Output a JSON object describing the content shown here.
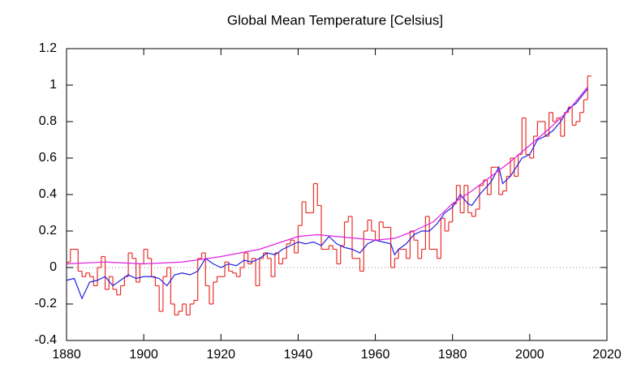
{
  "chart_data": {
    "type": "line",
    "title": "Global Mean Temperature [Celsius]",
    "xlim": [
      1880,
      2020
    ],
    "xticks": [
      1880,
      1900,
      1920,
      1940,
      1960,
      1980,
      2000,
      2020
    ],
    "ylim": [
      -0.4,
      1.2
    ],
    "yticks": [
      -0.4,
      -0.2,
      0,
      0.2,
      0.4,
      0.6,
      0.8,
      1,
      1.2
    ],
    "reference_line": 0,
    "series": [
      {
        "color": "#e8302a",
        "step": true,
        "x": [
          1880,
          1881,
          1882,
          1883,
          1884,
          1885,
          1886,
          1887,
          1888,
          1889,
          1890,
          1891,
          1892,
          1893,
          1894,
          1895,
          1896,
          1897,
          1898,
          1899,
          1900,
          1901,
          1902,
          1903,
          1904,
          1905,
          1906,
          1907,
          1908,
          1909,
          1910,
          1911,
          1912,
          1913,
          1914,
          1915,
          1916,
          1917,
          1918,
          1919,
          1920,
          1921,
          1922,
          1923,
          1924,
          1925,
          1926,
          1927,
          1928,
          1929,
          1930,
          1931,
          1932,
          1933,
          1934,
          1935,
          1936,
          1937,
          1938,
          1939,
          1940,
          1941,
          1942,
          1943,
          1944,
          1945,
          1946,
          1947,
          1948,
          1949,
          1950,
          1951,
          1952,
          1953,
          1954,
          1955,
          1956,
          1957,
          1958,
          1959,
          1960,
          1961,
          1962,
          1963,
          1964,
          1965,
          1966,
          1967,
          1968,
          1969,
          1970,
          1971,
          1972,
          1973,
          1974,
          1975,
          1976,
          1977,
          1978,
          1979,
          1980,
          1981,
          1982,
          1983,
          1984,
          1985,
          1986,
          1987,
          1988,
          1989,
          1990,
          1991,
          1992,
          1993,
          1994,
          1995,
          1996,
          1997,
          1998,
          1999,
          2000,
          2001,
          2002,
          2003,
          2004,
          2005,
          2006,
          2007,
          2008,
          2009,
          2010,
          2011,
          2012,
          2013,
          2014,
          2015
        ],
        "values": [
          0.03,
          0.1,
          0.1,
          -0.02,
          -0.05,
          -0.03,
          -0.05,
          -0.1,
          0.0,
          0.06,
          -0.12,
          -0.05,
          -0.12,
          -0.15,
          -0.1,
          -0.05,
          0.08,
          0.05,
          -0.08,
          0.02,
          0.1,
          0.05,
          -0.05,
          -0.1,
          -0.24,
          -0.05,
          0.0,
          -0.2,
          -0.26,
          -0.24,
          -0.2,
          -0.26,
          -0.2,
          -0.18,
          0.05,
          0.08,
          -0.1,
          -0.2,
          -0.08,
          -0.05,
          -0.05,
          0.03,
          -0.02,
          -0.03,
          -0.05,
          0.0,
          0.08,
          0.02,
          0.05,
          -0.1,
          0.05,
          0.08,
          0.05,
          -0.05,
          0.08,
          0.02,
          0.05,
          0.13,
          0.15,
          0.08,
          0.23,
          0.36,
          0.3,
          0.3,
          0.46,
          0.34,
          0.1,
          0.1,
          0.12,
          0.1,
          0.02,
          0.12,
          0.25,
          0.28,
          0.05,
          0.05,
          -0.02,
          0.2,
          0.26,
          0.2,
          0.15,
          0.25,
          0.22,
          0.22,
          0.0,
          0.05,
          0.1,
          0.1,
          0.05,
          0.2,
          0.15,
          0.05,
          0.1,
          0.28,
          0.1,
          0.1,
          0.05,
          0.27,
          0.2,
          0.25,
          0.35,
          0.45,
          0.3,
          0.45,
          0.3,
          0.28,
          0.32,
          0.45,
          0.48,
          0.4,
          0.55,
          0.55,
          0.4,
          0.42,
          0.5,
          0.6,
          0.5,
          0.62,
          0.82,
          0.62,
          0.6,
          0.72,
          0.8,
          0.8,
          0.72,
          0.85,
          0.8,
          0.82,
          0.72,
          0.85,
          0.88,
          0.78,
          0.8,
          0.85,
          0.92,
          1.05
        ]
      },
      {
        "color": "#2020e0",
        "x": [
          1880,
          1882,
          1884,
          1886,
          1888,
          1890,
          1892,
          1894,
          1896,
          1898,
          1900,
          1902,
          1904,
          1906,
          1908,
          1910,
          1912,
          1914,
          1916,
          1918,
          1920,
          1922,
          1924,
          1926,
          1928,
          1930,
          1932,
          1934,
          1936,
          1938,
          1940,
          1942,
          1944,
          1946,
          1948,
          1950,
          1952,
          1954,
          1956,
          1958,
          1960,
          1962,
          1964,
          1965,
          1966,
          1968,
          1970,
          1972,
          1974,
          1976,
          1978,
          1980,
          1982,
          1984,
          1985,
          1987,
          1990,
          1992,
          1993,
          1995,
          1998,
          2000,
          2002,
          2004,
          2006,
          2008,
          2010,
          2012,
          2015
        ],
        "values": [
          -0.07,
          -0.06,
          -0.17,
          -0.08,
          -0.07,
          -0.05,
          -0.1,
          -0.07,
          -0.04,
          -0.06,
          -0.05,
          -0.05,
          -0.06,
          -0.1,
          -0.04,
          -0.03,
          -0.04,
          -0.02,
          0.05,
          0.02,
          0.0,
          0.02,
          0.01,
          0.04,
          0.03,
          0.05,
          0.08,
          0.07,
          0.1,
          0.12,
          0.14,
          0.13,
          0.14,
          0.12,
          0.17,
          0.13,
          0.11,
          0.1,
          0.08,
          0.13,
          0.15,
          0.14,
          0.13,
          0.07,
          0.1,
          0.13,
          0.18,
          0.2,
          0.2,
          0.24,
          0.3,
          0.33,
          0.4,
          0.35,
          0.34,
          0.4,
          0.47,
          0.55,
          0.46,
          0.5,
          0.6,
          0.62,
          0.7,
          0.72,
          0.75,
          0.8,
          0.87,
          0.9,
          0.98
        ]
      },
      {
        "color": "#e020e0",
        "x": [
          1880,
          1890,
          1900,
          1910,
          1920,
          1930,
          1940,
          1945,
          1950,
          1955,
          1960,
          1965,
          1970,
          1975,
          1980,
          1985,
          1990,
          1995,
          2000,
          2005,
          2010,
          2015
        ],
        "values": [
          0.02,
          0.03,
          0.02,
          0.03,
          0.06,
          0.1,
          0.17,
          0.18,
          0.17,
          0.16,
          0.15,
          0.16,
          0.2,
          0.25,
          0.35,
          0.42,
          0.5,
          0.58,
          0.67,
          0.76,
          0.86,
          0.99
        ]
      }
    ]
  }
}
